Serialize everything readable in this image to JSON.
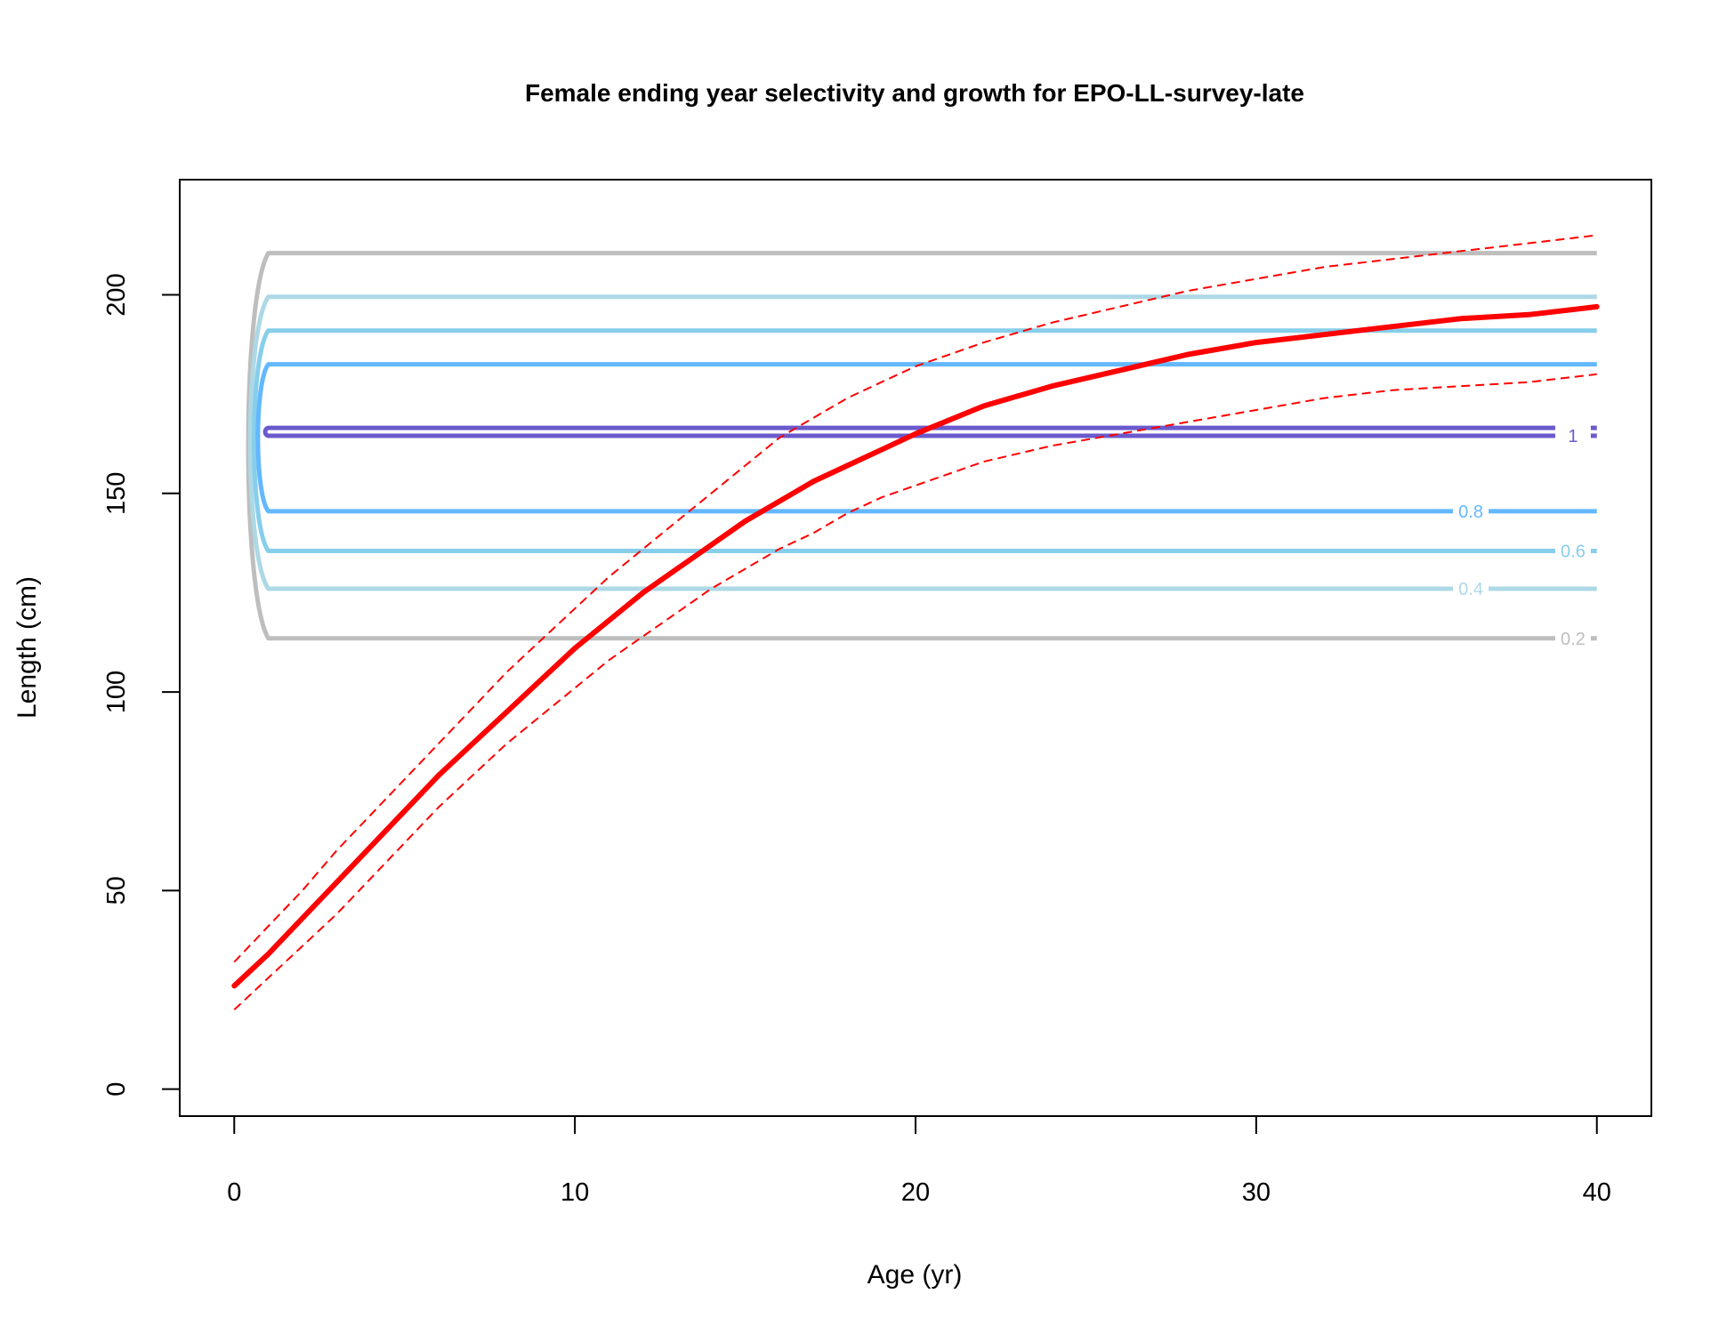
{
  "chart_data": {
    "type": "line",
    "title": "Female ending year selectivity and growth for EPO-LL-survey-late",
    "xlabel": "Age (yr)",
    "ylabel": "Length (cm)",
    "xlim": [
      -1.6,
      41.6
    ],
    "ylim": [
      -6.8,
      229
    ],
    "x_ticks": [
      0,
      10,
      20,
      30,
      40
    ],
    "y_ticks": [
      0,
      50,
      100,
      150,
      200
    ],
    "grid": false,
    "growth": {
      "color": "#ff0000",
      "ages": [
        0,
        1,
        2,
        3,
        4,
        5,
        6,
        7,
        8,
        9,
        10,
        11,
        12,
        13,
        14,
        15,
        16,
        17,
        18,
        19,
        20,
        22,
        24,
        26,
        28,
        30,
        32,
        34,
        36,
        38,
        40
      ],
      "mean": [
        26,
        34,
        43,
        52,
        61,
        70,
        79,
        87,
        95,
        103,
        111,
        118,
        125,
        131,
        137,
        143,
        148,
        153,
        157,
        161,
        165,
        172,
        177,
        181,
        185,
        188,
        190,
        192,
        194,
        195,
        197
      ],
      "upper": [
        32,
        41,
        50,
        60,
        69,
        78,
        87,
        96,
        105,
        113,
        121,
        129,
        136,
        143,
        150,
        157,
        164,
        169,
        174,
        178,
        182,
        188,
        193,
        197,
        201,
        204,
        207,
        209,
        211,
        213,
        215
      ],
      "lower": [
        20,
        28,
        36,
        44,
        53,
        62,
        71,
        79,
        87,
        94,
        101,
        108,
        114,
        120,
        126,
        131,
        136,
        140,
        145,
        149,
        152,
        158,
        162,
        165,
        168,
        171,
        174,
        176,
        177,
        178,
        180
      ]
    },
    "selectivity_contours": [
      {
        "level": "0.2",
        "color": "#bebebe",
        "x_start": 1,
        "x_end": 40,
        "upper_y": 210.5,
        "lower_y": 113.5,
        "label_x": 39.3,
        "label_y": 113.5,
        "label_text": "0.2"
      },
      {
        "level": "0.4",
        "color": "#add8e6",
        "x_start": 1,
        "x_end": 40,
        "upper_y": 199.5,
        "lower_y": 126,
        "label_x": 36.3,
        "label_y": 126,
        "label_text": "0.4"
      },
      {
        "level": "0.6",
        "color": "#87ceeb",
        "x_start": 1,
        "x_end": 40,
        "upper_y": 191,
        "lower_y": 135.5,
        "label_x": 39.3,
        "label_y": 135.5,
        "label_text": "0.6"
      },
      {
        "level": "0.8",
        "color": "#63b8ff",
        "x_start": 1,
        "x_end": 40,
        "upper_y": 182.5,
        "lower_y": 145.5,
        "label_x": 36.3,
        "label_y": 145.5,
        "label_text": "0.8"
      },
      {
        "level": "1",
        "color": "#6a5acd",
        "x_start": 1,
        "x_end": 40,
        "upper_y": 166.5,
        "lower_y": 164.5,
        "label_x": 39.3,
        "label_y": 164.5,
        "label_text": "1"
      }
    ]
  }
}
